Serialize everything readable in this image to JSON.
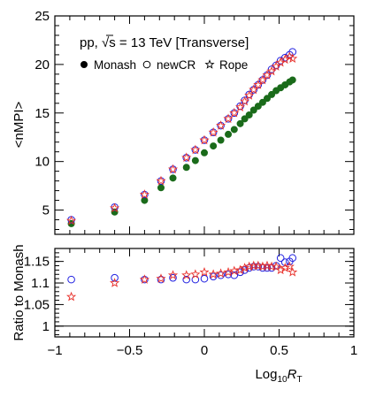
{
  "chart_data": {
    "type": "scatter",
    "legend": {
      "title_prefix": "pp, ",
      "title_sqrt": "√s",
      "title_suffix": " = 13 TeV [Transverse]",
      "placement": "top-left",
      "entries": [
        "Monash",
        "newCR",
        "Rope"
      ]
    },
    "colors": {
      "Monash": "#1a6b1a",
      "newCR": "#1f1fe0",
      "Rope": "#e8302a"
    },
    "markers": {
      "Monash": "filled-circle",
      "newCR": "open-circle",
      "Rope": "open-star"
    },
    "top_panel": {
      "ylabel": "<nMPI>",
      "ylim": [
        2.5,
        25
      ],
      "yticks": [
        5,
        10,
        15,
        20,
        25
      ],
      "series": [
        {
          "name": "Monash",
          "x": [
            -0.89,
            -0.6,
            -0.4,
            -0.29,
            -0.21,
            -0.12,
            -0.06,
            0.0,
            0.06,
            0.11,
            0.16,
            0.2,
            0.24,
            0.27,
            0.3,
            0.33,
            0.36,
            0.39,
            0.42,
            0.45,
            0.48,
            0.51,
            0.54,
            0.57,
            0.59
          ],
          "y": [
            3.6,
            4.8,
            6.0,
            7.3,
            8.3,
            9.4,
            10.1,
            10.9,
            11.6,
            12.2,
            12.8,
            13.3,
            13.9,
            14.4,
            14.8,
            15.3,
            15.7,
            16.1,
            16.5,
            16.9,
            17.3,
            17.6,
            17.9,
            18.2,
            18.4
          ]
        },
        {
          "name": "newCR",
          "x": [
            -0.89,
            -0.6,
            -0.4,
            -0.29,
            -0.21,
            -0.12,
            -0.06,
            0.0,
            0.06,
            0.11,
            0.16,
            0.2,
            0.24,
            0.27,
            0.3,
            0.33,
            0.36,
            0.39,
            0.42,
            0.45,
            0.48,
            0.51,
            0.54,
            0.57,
            0.59
          ],
          "y": [
            4.0,
            5.3,
            6.6,
            8.0,
            9.2,
            10.4,
            11.2,
            12.2,
            13.0,
            13.7,
            14.4,
            15.0,
            15.7,
            16.3,
            16.9,
            17.4,
            17.9,
            18.4,
            18.9,
            19.5,
            19.9,
            20.4,
            20.7,
            21.0,
            21.3
          ]
        },
        {
          "name": "Rope",
          "x": [
            -0.89,
            -0.6,
            -0.4,
            -0.29,
            -0.21,
            -0.12,
            -0.06,
            0.0,
            0.06,
            0.11,
            0.16,
            0.2,
            0.24,
            0.27,
            0.3,
            0.33,
            0.36,
            0.39,
            0.42,
            0.45,
            0.48,
            0.51,
            0.54,
            0.57,
            0.59
          ],
          "y": [
            3.9,
            5.2,
            6.6,
            8.0,
            9.2,
            10.4,
            11.2,
            12.2,
            13.0,
            13.7,
            14.4,
            15.0,
            15.6,
            16.2,
            16.8,
            17.4,
            17.9,
            18.4,
            18.9,
            19.3,
            19.8,
            20.2,
            20.5,
            20.8,
            20.6
          ]
        }
      ]
    },
    "bottom_panel": {
      "ylabel": "Ratio to Monash",
      "ylim": [
        0.975,
        1.18
      ],
      "yticks": [
        1,
        1.05,
        1.1,
        1.15
      ],
      "reference_line": 1,
      "series": [
        {
          "name": "newCR",
          "x": [
            -0.89,
            -0.6,
            -0.4,
            -0.29,
            -0.21,
            -0.12,
            -0.06,
            0.0,
            0.06,
            0.11,
            0.16,
            0.2,
            0.24,
            0.27,
            0.3,
            0.33,
            0.36,
            0.39,
            0.42,
            0.45,
            0.48,
            0.51,
            0.54,
            0.57,
            0.59
          ],
          "y": [
            1.108,
            1.112,
            1.108,
            1.108,
            1.112,
            1.108,
            1.108,
            1.11,
            1.115,
            1.118,
            1.12,
            1.118,
            1.125,
            1.13,
            1.135,
            1.138,
            1.138,
            1.135,
            1.135,
            1.135,
            1.14,
            1.158,
            1.148,
            1.15,
            1.158
          ]
        },
        {
          "name": "Rope",
          "x": [
            -0.89,
            -0.6,
            -0.4,
            -0.29,
            -0.21,
            -0.12,
            -0.06,
            0.0,
            0.06,
            0.11,
            0.16,
            0.2,
            0.24,
            0.27,
            0.3,
            0.33,
            0.36,
            0.39,
            0.42,
            0.45,
            0.48,
            0.51,
            0.54,
            0.57,
            0.59
          ],
          "y": [
            1.068,
            1.1,
            1.108,
            1.11,
            1.118,
            1.118,
            1.12,
            1.125,
            1.12,
            1.122,
            1.125,
            1.128,
            1.13,
            1.135,
            1.138,
            1.14,
            1.14,
            1.138,
            1.14,
            1.138,
            1.138,
            1.13,
            1.135,
            1.138,
            1.125
          ]
        }
      ]
    },
    "xaxis": {
      "label_prefix": "Log",
      "label_sub": "10",
      "label_var": "R",
      "label_var_sub": "T",
      "xlim": [
        -1,
        1
      ],
      "xticks": [
        -1,
        -0.5,
        0,
        0.5,
        1
      ],
      "xtick_labels": [
        "−1",
        "−0.5",
        "0",
        "0.5",
        "1"
      ]
    },
    "grid": false
  }
}
